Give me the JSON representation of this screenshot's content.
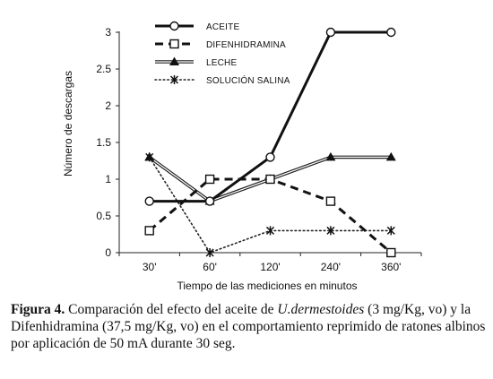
{
  "chart_data": {
    "type": "line",
    "categories": [
      "30'",
      "60'",
      "120'",
      "240'",
      "360'"
    ],
    "ylabel": "Número de descargas",
    "xlabel": "Tiempo de las mediciones en minutos",
    "ylim": [
      0,
      3
    ],
    "yticks": [
      "0",
      "0.5",
      "1",
      "1.5",
      "2",
      "2.5",
      "3"
    ],
    "grid": false,
    "legend_position": "top",
    "series": [
      {
        "name": "ACEITE",
        "values": [
          0.7,
          0.7,
          1.3,
          3,
          3
        ],
        "style": "solid-thick",
        "marker": "circle-open"
      },
      {
        "name": "DIFENHIDRAMINA",
        "values": [
          0.3,
          1,
          1,
          0.7,
          0
        ],
        "style": "dashed-thick",
        "marker": "square-open"
      },
      {
        "name": "LECHE",
        "values": [
          1.3,
          0.7,
          1,
          1.3,
          1.3
        ],
        "style": "double-line",
        "marker": "triangle"
      },
      {
        "name": "SOLUCIÓN SALINA",
        "values": [
          1.3,
          0,
          0.3,
          0.3,
          0.3
        ],
        "style": "dotted",
        "marker": "x-star"
      }
    ]
  },
  "caption": {
    "label": "Figura 4.",
    "text_before_italic": " Comparación del efecto del aceite de ",
    "italic": "U.dermestoides",
    "text_after_italic": " (3 mg/Kg, vo) y la Difenhidramina (37,5 mg/Kg, vo) en el comportamiento reprimido de ratones albinos por aplicación de 50 mA durante 30 seg."
  }
}
